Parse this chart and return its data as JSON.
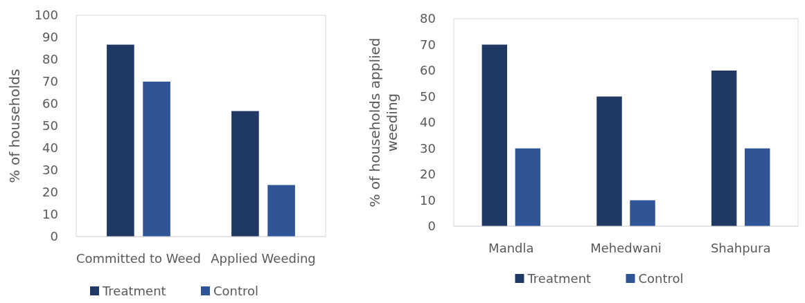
{
  "chart_data": [
    {
      "type": "bar",
      "categories": [
        "Committed to Weed",
        "Applied Weeding"
      ],
      "ylabel": "% of households",
      "ylim": [
        0,
        100
      ],
      "yticks": [
        0,
        10,
        20,
        30,
        40,
        50,
        60,
        70,
        80,
        90,
        100
      ],
      "legend": "bottom",
      "grid": false,
      "series": [
        {
          "name": "Treatment",
          "color": "#1f3864",
          "values": [
            86.7,
            56.7
          ]
        },
        {
          "name": "Control",
          "color": "#2f5597",
          "values": [
            70,
            23.3
          ]
        }
      ]
    },
    {
      "type": "bar",
      "categories": [
        "Mandla",
        "Mehedwani",
        "Shahpura"
      ],
      "ylabel": "% of households applied weeding",
      "ylim": [
        0,
        80
      ],
      "yticks": [
        0,
        10,
        20,
        30,
        40,
        50,
        60,
        70,
        80
      ],
      "legend": "bottom",
      "grid": false,
      "series": [
        {
          "name": "Treatment",
          "color": "#1f3864",
          "values": [
            70,
            50,
            60
          ]
        },
        {
          "name": "Control",
          "color": "#2f5597",
          "values": [
            30,
            10,
            30
          ]
        }
      ]
    }
  ]
}
